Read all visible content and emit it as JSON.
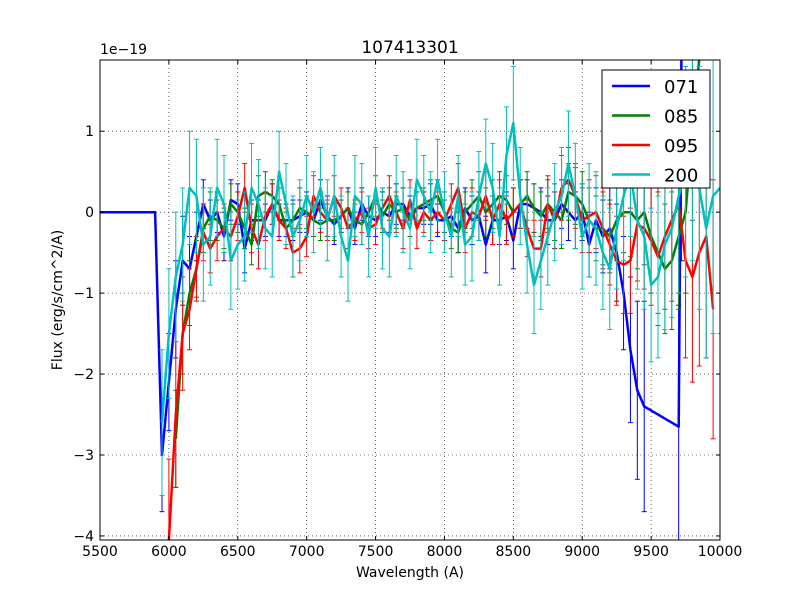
{
  "chart_data": {
    "type": "line",
    "title": "107413301",
    "xlabel": "Wavelength (A)",
    "ylabel": "Flux (erg/s/cm^2/A)",
    "offset_label": "1e−19",
    "xlim": [
      5500,
      10000
    ],
    "ylim": [
      -4.05,
      1.88
    ],
    "xticks": [
      5500,
      6000,
      6500,
      7000,
      7500,
      8000,
      8500,
      9000,
      9500,
      10000
    ],
    "xtick_labels": [
      "5500",
      "6000",
      "6500",
      "7000",
      "7500",
      "8000",
      "8500",
      "9000",
      "9500",
      "10000"
    ],
    "yticks": [
      -4,
      -3,
      -2,
      -1,
      0,
      1
    ],
    "ytick_labels": [
      "−4",
      "−3",
      "−2",
      "−1",
      "0",
      "1"
    ],
    "grid": true,
    "legend_position": "top-right",
    "series": [
      {
        "name": "071",
        "color": "#0000ff",
        "x": [
          5500,
          5900,
          5950,
          6000,
          6050,
          6100,
          6150,
          6200,
          6250,
          6300,
          6350,
          6400,
          6450,
          6500,
          6550,
          6600,
          6650,
          6700,
          6750,
          6800,
          6850,
          6900,
          6950,
          7000,
          7050,
          7100,
          7150,
          7200,
          7250,
          7300,
          7350,
          7400,
          7450,
          7500,
          7550,
          7600,
          7650,
          7700,
          7750,
          7800,
          7850,
          7900,
          7950,
          8000,
          8050,
          8100,
          8150,
          8200,
          8250,
          8300,
          8350,
          8400,
          8450,
          8500,
          8550,
          8600,
          8650,
          8700,
          8750,
          8800,
          8850,
          8900,
          8950,
          9000,
          9050,
          9100,
          9150,
          9200,
          9250,
          9300,
          9350,
          9400,
          9450,
          9700,
          9720
        ],
        "y": [
          0,
          0,
          -3.0,
          -2.1,
          -1.2,
          -0.6,
          -0.7,
          -0.3,
          0.1,
          -0.1,
          0.0,
          -0.3,
          0.15,
          0.1,
          -0.45,
          -0.1,
          -0.1,
          -0.1,
          0.1,
          -0.1,
          -0.1,
          -0.1,
          -0.05,
          0.0,
          -0.1,
          0.15,
          -0.05,
          -0.15,
          -0.05,
          0.05,
          -0.2,
          0.1,
          -0.05,
          -0.1,
          0.0,
          -0.05,
          0.1,
          0.1,
          -0.05,
          0.05,
          0.05,
          0.1,
          -0.1,
          -0.1,
          -0.05,
          -0.2,
          0.05,
          -0.1,
          -0.05,
          -0.4,
          -0.1,
          -0.1,
          -0.05,
          -0.35,
          0.1,
          0.1,
          0.05,
          0.0,
          -0.1,
          -0.1,
          0.1,
          0.0,
          -0.1,
          0.0,
          -0.4,
          -0.1,
          -0.3,
          -0.2,
          -0.5,
          -1.0,
          -1.7,
          -2.2,
          -2.4,
          -2.65,
          1.9
        ],
        "err": [
          0,
          0,
          0.7,
          0.6,
          0.6,
          0.55,
          0.4,
          0.3,
          0.3,
          0.25,
          0.25,
          0.3,
          0.25,
          0.25,
          0.3,
          0.25,
          0.25,
          0.2,
          0.25,
          0.2,
          0.2,
          0.25,
          0.2,
          0.25,
          0.2,
          0.25,
          0.25,
          0.25,
          0.2,
          0.25,
          0.2,
          0.2,
          0.25,
          0.2,
          0.25,
          0.2,
          0.25,
          0.2,
          0.25,
          0.2,
          0.2,
          0.25,
          0.2,
          0.25,
          0.25,
          0.3,
          0.25,
          0.3,
          0.3,
          0.35,
          0.3,
          0.3,
          0.3,
          0.35,
          0.3,
          0.3,
          0.3,
          0.3,
          0.3,
          0.35,
          0.3,
          0.35,
          0.35,
          0.35,
          0.4,
          0.4,
          0.45,
          0.5,
          0.6,
          0.7,
          0.9,
          1.1,
          1.3,
          1.5,
          2.5
        ]
      },
      {
        "name": "085",
        "color": "#008000",
        "x": [
          6050,
          6100,
          6150,
          6200,
          6250,
          6300,
          6350,
          6400,
          6450,
          6500,
          6550,
          6600,
          6650,
          6700,
          6750,
          6800,
          6850,
          6900,
          6950,
          7000,
          7050,
          7100,
          7150,
          7200,
          7250,
          7300,
          7350,
          7400,
          7450,
          7500,
          7550,
          7600,
          7650,
          7700,
          7750,
          7800,
          7850,
          7900,
          7950,
          8000,
          8050,
          8100,
          8150,
          8200,
          8250,
          8300,
          8350,
          8400,
          8450,
          8500,
          8550,
          8600,
          8650,
          8700,
          8750,
          8800,
          8850,
          8900,
          8950,
          9000,
          9050,
          9100,
          9150,
          9200,
          9250,
          9300,
          9350,
          9400,
          9450,
          9500,
          9550,
          9600,
          9650,
          9700,
          9750,
          9800,
          9850
        ],
        "y": [
          -2.8,
          -1.5,
          -1.0,
          -0.7,
          -0.2,
          -0.05,
          -0.1,
          -0.2,
          0.1,
          0.0,
          -0.2,
          -0.4,
          0.2,
          0.25,
          0.2,
          0.1,
          -0.2,
          -0.1,
          0.05,
          0.0,
          -0.1,
          -0.15,
          -0.1,
          -0.1,
          -0.05,
          0.05,
          -0.1,
          -0.15,
          0.0,
          0.2,
          -0.05,
          0.1,
          0.0,
          0.05,
          -0.1,
          0.05,
          0.1,
          0.15,
          0.2,
          0.0,
          -0.2,
          -0.25,
          0.0,
          0.1,
          0.2,
          0.0,
          0.1,
          0.2,
          0.15,
          0.0,
          0.1,
          0.2,
          0.05,
          -0.05,
          0.1,
          0.0,
          -0.1,
          0.25,
          0.2,
          0.1,
          -0.1,
          -0.2,
          -0.2,
          -0.3,
          -0.1,
          0.0,
          0.0,
          -0.1,
          0.0,
          -0.3,
          -0.5,
          -0.7,
          -0.6,
          -0.3,
          0.0,
          1.0,
          1.9
        ],
        "err": [
          0.6,
          0.5,
          0.4,
          0.35,
          0.3,
          0.3,
          0.25,
          0.25,
          0.25,
          0.25,
          0.25,
          0.25,
          0.25,
          0.25,
          0.2,
          0.2,
          0.2,
          0.2,
          0.25,
          0.2,
          0.2,
          0.2,
          0.2,
          0.25,
          0.2,
          0.2,
          0.2,
          0.25,
          0.2,
          0.25,
          0.2,
          0.2,
          0.2,
          0.25,
          0.2,
          0.2,
          0.2,
          0.25,
          0.2,
          0.25,
          0.25,
          0.25,
          0.25,
          0.3,
          0.3,
          0.3,
          0.3,
          0.3,
          0.3,
          0.3,
          0.3,
          0.3,
          0.3,
          0.3,
          0.3,
          0.35,
          0.35,
          0.35,
          0.35,
          0.4,
          0.4,
          0.4,
          0.45,
          0.45,
          0.5,
          0.5,
          0.55,
          0.6,
          0.65,
          0.7,
          0.75,
          0.8,
          0.85,
          0.9,
          1.0,
          1.1,
          1.2
        ]
      },
      {
        "name": "095",
        "color": "#ff0000",
        "x": [
          6000,
          6050,
          6100,
          6150,
          6200,
          6250,
          6300,
          6350,
          6400,
          6450,
          6500,
          6550,
          6600,
          6650,
          6700,
          6750,
          6800,
          6850,
          6900,
          6950,
          7000,
          7050,
          7100,
          7150,
          7200,
          7250,
          7300,
          7350,
          7400,
          7450,
          7500,
          7550,
          7600,
          7650,
          7700,
          7750,
          7800,
          7850,
          7900,
          7950,
          8000,
          8050,
          8100,
          8150,
          8200,
          8250,
          8300,
          8350,
          8400,
          8450,
          8500,
          8550,
          8600,
          8650,
          8700,
          8750,
          8800,
          8850,
          8900,
          8950,
          9000,
          9050,
          9100,
          9150,
          9200,
          9250,
          9300,
          9350,
          9400,
          9450,
          9500,
          9550,
          9600,
          9650,
          9700,
          9750,
          9800,
          9850,
          9900,
          9950
        ],
        "y": [
          -4.05,
          -2.5,
          -1.5,
          -1.2,
          -0.7,
          -0.25,
          -0.45,
          -0.3,
          -0.2,
          -0.3,
          -0.05,
          0.3,
          -0.2,
          -0.4,
          -0.05,
          0.1,
          -0.1,
          -0.2,
          -0.5,
          -0.45,
          -0.3,
          0.2,
          0.0,
          -0.1,
          0.2,
          0.05,
          -0.2,
          -0.1,
          0.0,
          -0.2,
          -0.15,
          0.05,
          0.2,
          0.0,
          -0.2,
          0.15,
          -0.2,
          0.0,
          -0.1,
          0.0,
          -0.1,
          0.1,
          0.3,
          -0.2,
          0.0,
          -0.05,
          0.2,
          -0.1,
          0.1,
          -0.1,
          0.0,
          0.1,
          -0.2,
          -0.45,
          -0.45,
          0.1,
          -0.1,
          0.3,
          0.4,
          0.2,
          -0.1,
          -0.05,
          0.0,
          -0.2,
          -0.4,
          -0.6,
          -0.65,
          -0.6,
          -0.15,
          -0.2,
          -0.35,
          -0.55,
          -0.3,
          -0.1,
          0.1,
          -0.6,
          -0.8,
          -0.5,
          -0.3,
          -1.2
        ],
        "err": [
          1.0,
          0.9,
          0.7,
          0.5,
          0.4,
          0.35,
          0.3,
          0.3,
          0.3,
          0.3,
          0.3,
          0.3,
          0.3,
          0.3,
          0.3,
          0.25,
          0.25,
          0.25,
          0.3,
          0.3,
          0.25,
          0.25,
          0.25,
          0.25,
          0.25,
          0.25,
          0.25,
          0.25,
          0.25,
          0.25,
          0.25,
          0.25,
          0.25,
          0.25,
          0.25,
          0.25,
          0.25,
          0.25,
          0.25,
          0.25,
          0.25,
          0.25,
          0.3,
          0.3,
          0.3,
          0.3,
          0.3,
          0.3,
          0.3,
          0.3,
          0.3,
          0.3,
          0.35,
          0.35,
          0.35,
          0.35,
          0.35,
          0.4,
          0.4,
          0.4,
          0.4,
          0.45,
          0.45,
          0.5,
          0.5,
          0.55,
          0.6,
          0.65,
          0.7,
          0.75,
          0.8,
          0.85,
          0.9,
          1.0,
          1.1,
          1.2,
          1.3,
          1.4,
          1.5,
          1.6
        ]
      },
      {
        "name": "200",
        "color": "#00bfbf",
        "x": [
          5950,
          6000,
          6050,
          6100,
          6150,
          6200,
          6250,
          6300,
          6350,
          6400,
          6450,
          6500,
          6550,
          6600,
          6650,
          6700,
          6750,
          6800,
          6850,
          6900,
          6950,
          7000,
          7050,
          7100,
          7150,
          7200,
          7250,
          7300,
          7350,
          7400,
          7450,
          7500,
          7550,
          7600,
          7650,
          7700,
          7750,
          7800,
          7850,
          7900,
          7950,
          8000,
          8050,
          8100,
          8150,
          8200,
          8250,
          8300,
          8350,
          8400,
          8450,
          8500,
          8550,
          8600,
          8650,
          8700,
          8750,
          8800,
          8850,
          8900,
          8950,
          9000,
          9050,
          9100,
          9150,
          9200,
          9250,
          9300,
          9350,
          9400,
          9450,
          9500,
          9550,
          9600,
          9650,
          9700,
          9750,
          9800,
          9850,
          9900,
          9950,
          10000
        ],
        "y": [
          -2.6,
          -1.5,
          -0.8,
          -0.4,
          0.3,
          0.2,
          -0.4,
          -0.3,
          0.3,
          0.1,
          -0.6,
          -0.4,
          -0.3,
          0.3,
          0.1,
          -0.2,
          -0.3,
          0.5,
          0.1,
          -0.3,
          -0.1,
          0.2,
          0.0,
          0.3,
          -0.1,
          0.2,
          -0.3,
          -0.6,
          0.2,
          0.1,
          -0.3,
          0.3,
          -0.2,
          -0.3,
          0.2,
          0.0,
          -0.2,
          0.4,
          0.2,
          0.0,
          0.4,
          0.0,
          -0.3,
          0.2,
          -0.4,
          -0.3,
          0.2,
          0.6,
          0.3,
          -0.3,
          0.7,
          1.1,
          0.2,
          -0.4,
          -0.9,
          -0.6,
          -0.3,
          0.0,
          0.2,
          0.6,
          0.2,
          -0.3,
          -0.1,
          -0.2,
          -0.5,
          -0.7,
          -0.2,
          0.2,
          0.5,
          -0.1,
          -0.3,
          -0.9,
          -0.8,
          -0.4,
          -0.2,
          0.2,
          0.5,
          0.8,
          0.3,
          -0.2,
          0.2,
          0.3
        ],
        "err": [
          0.9,
          0.8,
          0.8,
          0.7,
          0.7,
          0.7,
          0.7,
          0.6,
          0.6,
          0.6,
          0.6,
          0.55,
          0.55,
          0.55,
          0.55,
          0.5,
          0.5,
          0.5,
          0.5,
          0.5,
          0.5,
          0.5,
          0.5,
          0.5,
          0.5,
          0.5,
          0.5,
          0.5,
          0.5,
          0.5,
          0.5,
          0.5,
          0.5,
          0.5,
          0.5,
          0.5,
          0.5,
          0.5,
          0.5,
          0.5,
          0.5,
          0.5,
          0.5,
          0.5,
          0.5,
          0.55,
          0.55,
          0.55,
          0.55,
          0.6,
          0.6,
          0.7,
          0.6,
          0.6,
          0.6,
          0.6,
          0.6,
          0.6,
          0.6,
          0.65,
          0.65,
          0.65,
          0.7,
          0.7,
          0.7,
          0.75,
          0.75,
          0.8,
          0.8,
          0.85,
          0.9,
          0.95,
          1.0,
          1.05,
          1.1,
          1.2,
          1.3,
          1.4,
          1.5,
          1.6,
          1.7,
          1.8
        ]
      }
    ]
  }
}
